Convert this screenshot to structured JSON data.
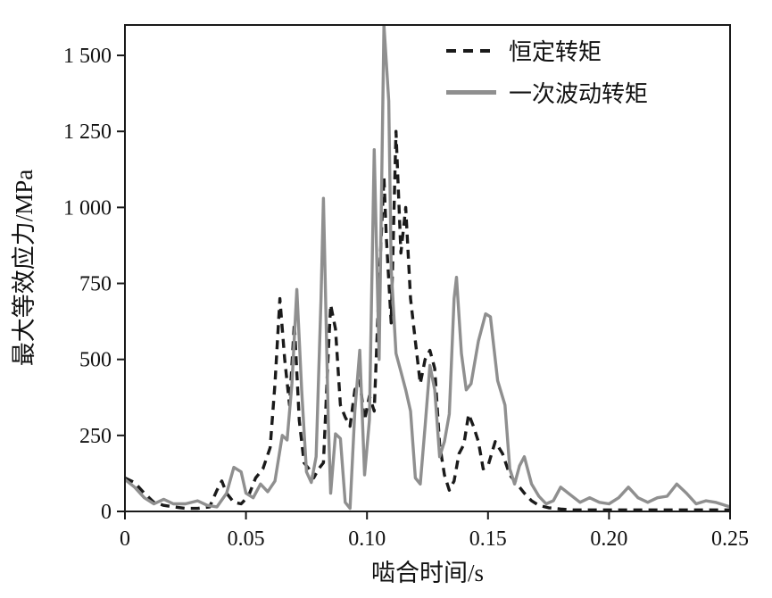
{
  "figure": {
    "background": "#ffffff"
  },
  "legend": {
    "position": "top-right"
  },
  "chart_data": {
    "type": "line",
    "title": "",
    "xlabel": "啮合时间/s",
    "ylabel": "最大等效应力/MPa",
    "xlim": [
      0,
      0.25
    ],
    "ylim": [
      0,
      1600
    ],
    "x_ticks": [
      0,
      0.05,
      0.1,
      0.15,
      0.2,
      0.25
    ],
    "x_tick_labels": [
      "0",
      "0.05",
      "0.10",
      "0.15",
      "0.20",
      "0.25"
    ],
    "y_ticks": [
      0,
      250,
      500,
      750,
      1000,
      1250,
      1500
    ],
    "y_tick_labels": [
      "0",
      "250",
      "500",
      "750",
      "1 000",
      "1 250",
      "1 500"
    ],
    "grid": false,
    "legend_position": "top-right",
    "series": [
      {
        "name": "恒定转矩",
        "style": "dashed",
        "color": "#1a1a1a",
        "points": [
          [
            0,
            110
          ],
          [
            0.004,
            95
          ],
          [
            0.008,
            60
          ],
          [
            0.012,
            30
          ],
          [
            0.016,
            20
          ],
          [
            0.02,
            15
          ],
          [
            0.025,
            10
          ],
          [
            0.03,
            10
          ],
          [
            0.035,
            15
          ],
          [
            0.038,
            70
          ],
          [
            0.04,
            100
          ],
          [
            0.042,
            60
          ],
          [
            0.045,
            30
          ],
          [
            0.048,
            25
          ],
          [
            0.051,
            50
          ],
          [
            0.054,
            110
          ],
          [
            0.057,
            140
          ],
          [
            0.06,
            210
          ],
          [
            0.062,
            420
          ],
          [
            0.064,
            700
          ],
          [
            0.066,
            500
          ],
          [
            0.068,
            350
          ],
          [
            0.07,
            620
          ],
          [
            0.072,
            300
          ],
          [
            0.074,
            160
          ],
          [
            0.076,
            140
          ],
          [
            0.078,
            110
          ],
          [
            0.08,
            140
          ],
          [
            0.082,
            160
          ],
          [
            0.084,
            520
          ],
          [
            0.085,
            680
          ],
          [
            0.087,
            600
          ],
          [
            0.089,
            350
          ],
          [
            0.091,
            310
          ],
          [
            0.093,
            280
          ],
          [
            0.095,
            400
          ],
          [
            0.097,
            430
          ],
          [
            0.099,
            300
          ],
          [
            0.101,
            380
          ],
          [
            0.103,
            330
          ],
          [
            0.105,
            750
          ],
          [
            0.107,
            1100
          ],
          [
            0.108,
            900
          ],
          [
            0.11,
            620
          ],
          [
            0.112,
            1250
          ],
          [
            0.114,
            850
          ],
          [
            0.116,
            1000
          ],
          [
            0.118,
            700
          ],
          [
            0.12,
            560
          ],
          [
            0.122,
            420
          ],
          [
            0.124,
            500
          ],
          [
            0.126,
            530
          ],
          [
            0.128,
            470
          ],
          [
            0.13,
            220
          ],
          [
            0.132,
            120
          ],
          [
            0.134,
            70
          ],
          [
            0.136,
            100
          ],
          [
            0.138,
            190
          ],
          [
            0.14,
            220
          ],
          [
            0.142,
            320
          ],
          [
            0.144,
            280
          ],
          [
            0.146,
            230
          ],
          [
            0.148,
            140
          ],
          [
            0.15,
            150
          ],
          [
            0.153,
            230
          ],
          [
            0.156,
            190
          ],
          [
            0.159,
            120
          ],
          [
            0.162,
            90
          ],
          [
            0.165,
            60
          ],
          [
            0.168,
            35
          ],
          [
            0.171,
            20
          ],
          [
            0.175,
            12
          ],
          [
            0.18,
            8
          ],
          [
            0.185,
            5
          ],
          [
            0.19,
            5
          ],
          [
            0.2,
            5
          ],
          [
            0.21,
            5
          ],
          [
            0.22,
            5
          ],
          [
            0.23,
            5
          ],
          [
            0.24,
            5
          ],
          [
            0.25,
            5
          ]
        ]
      },
      {
        "name": "一次波动转矩",
        "style": "solid",
        "color": "#8f8f8f",
        "points": [
          [
            0,
            105
          ],
          [
            0.004,
            80
          ],
          [
            0.008,
            45
          ],
          [
            0.012,
            25
          ],
          [
            0.016,
            40
          ],
          [
            0.02,
            25
          ],
          [
            0.025,
            25
          ],
          [
            0.03,
            35
          ],
          [
            0.034,
            20
          ],
          [
            0.038,
            15
          ],
          [
            0.042,
            60
          ],
          [
            0.045,
            145
          ],
          [
            0.048,
            130
          ],
          [
            0.05,
            60
          ],
          [
            0.053,
            45
          ],
          [
            0.056,
            90
          ],
          [
            0.059,
            65
          ],
          [
            0.062,
            100
          ],
          [
            0.065,
            250
          ],
          [
            0.067,
            235
          ],
          [
            0.069,
            420
          ],
          [
            0.071,
            730
          ],
          [
            0.073,
            400
          ],
          [
            0.075,
            130
          ],
          [
            0.077,
            95
          ],
          [
            0.079,
            180
          ],
          [
            0.081,
            700
          ],
          [
            0.082,
            1030
          ],
          [
            0.084,
            300
          ],
          [
            0.085,
            60
          ],
          [
            0.087,
            255
          ],
          [
            0.089,
            240
          ],
          [
            0.091,
            30
          ],
          [
            0.093,
            10
          ],
          [
            0.095,
            330
          ],
          [
            0.097,
            530
          ],
          [
            0.099,
            120
          ],
          [
            0.101,
            300
          ],
          [
            0.103,
            1190
          ],
          [
            0.105,
            500
          ],
          [
            0.107,
            1600
          ],
          [
            0.109,
            1350
          ],
          [
            0.11,
            800
          ],
          [
            0.112,
            520
          ],
          [
            0.114,
            460
          ],
          [
            0.116,
            400
          ],
          [
            0.118,
            330
          ],
          [
            0.12,
            110
          ],
          [
            0.122,
            90
          ],
          [
            0.124,
            280
          ],
          [
            0.126,
            480
          ],
          [
            0.128,
            400
          ],
          [
            0.13,
            180
          ],
          [
            0.132,
            230
          ],
          [
            0.134,
            320
          ],
          [
            0.136,
            700
          ],
          [
            0.137,
            770
          ],
          [
            0.139,
            520
          ],
          [
            0.141,
            400
          ],
          [
            0.143,
            420
          ],
          [
            0.146,
            560
          ],
          [
            0.149,
            650
          ],
          [
            0.151,
            640
          ],
          [
            0.154,
            430
          ],
          [
            0.157,
            350
          ],
          [
            0.159,
            140
          ],
          [
            0.161,
            90
          ],
          [
            0.163,
            150
          ],
          [
            0.165,
            180
          ],
          [
            0.168,
            90
          ],
          [
            0.171,
            50
          ],
          [
            0.174,
            25
          ],
          [
            0.177,
            35
          ],
          [
            0.18,
            80
          ],
          [
            0.184,
            55
          ],
          [
            0.188,
            30
          ],
          [
            0.192,
            45
          ],
          [
            0.196,
            30
          ],
          [
            0.2,
            25
          ],
          [
            0.204,
            45
          ],
          [
            0.208,
            80
          ],
          [
            0.212,
            45
          ],
          [
            0.216,
            30
          ],
          [
            0.22,
            45
          ],
          [
            0.224,
            50
          ],
          [
            0.228,
            90
          ],
          [
            0.232,
            60
          ],
          [
            0.236,
            25
          ],
          [
            0.24,
            35
          ],
          [
            0.244,
            30
          ],
          [
            0.248,
            20
          ],
          [
            0.25,
            15
          ]
        ]
      }
    ]
  }
}
